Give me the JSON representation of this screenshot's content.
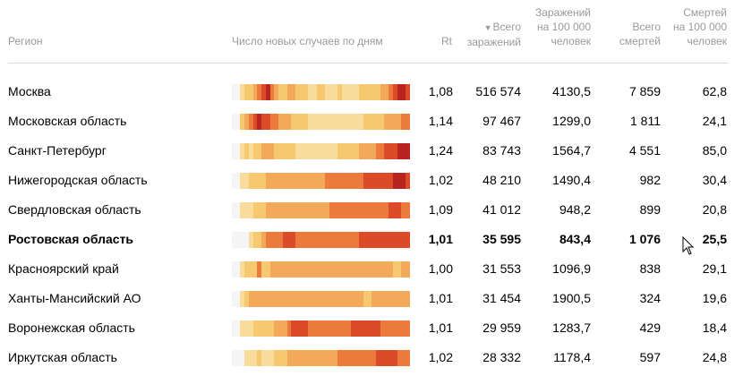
{
  "header": {
    "region": "Регион",
    "daily_cases": "Число новых случаев по дням",
    "rt": "Rt",
    "total_cases_line1": "Всего",
    "total_cases_line2": "заражений",
    "sort_indicator": "▼",
    "per100k_line1": "Заражений",
    "per100k_line2": "на 100 000",
    "per100k_line3": "человек",
    "total_deaths_line1": "Всего",
    "total_deaths_line2": "смертей",
    "deaths_per100k_line1": "Смертей",
    "deaths_per100k_line2": "на 100 000",
    "deaths_per100k_line3": "человек"
  },
  "heatmap_palette": [
    "#f5f5f5",
    "#f9dc9c",
    "#f6c86f",
    "#f3a95a",
    "#ec7a3c",
    "#dc4a28",
    "#b8241f"
  ],
  "rows": [
    {
      "region": "Москва",
      "rt": "1,08",
      "total_cases": "516 574",
      "cases_per_100k": "4130,5",
      "total_deaths": "7 859",
      "deaths_per_100k": "62,8",
      "bold": false,
      "heat": [
        0,
        0,
        1,
        2,
        2,
        3,
        4,
        5,
        6,
        4,
        3,
        2,
        2,
        3,
        3,
        2,
        2,
        2,
        1,
        1,
        2,
        2,
        1,
        1,
        1,
        2,
        1,
        1,
        1,
        1,
        2,
        2,
        2,
        2,
        2,
        3,
        3,
        4,
        5,
        6,
        6,
        5
      ]
    },
    {
      "region": "Московская область",
      "rt": "1,14",
      "total_cases": "97 467",
      "cases_per_100k": "1299,0",
      "total_deaths": "1 811",
      "deaths_per_100k": "24,1",
      "bold": false,
      "heat": [
        0,
        0,
        2,
        3,
        4,
        5,
        6,
        5,
        5,
        4,
        4,
        3,
        3,
        3,
        2,
        2,
        2,
        2,
        1,
        1,
        1,
        1,
        1,
        1,
        1,
        1,
        1,
        1,
        1,
        1,
        1,
        2,
        2,
        2,
        2,
        2,
        3,
        3,
        3,
        3,
        4,
        4
      ]
    },
    {
      "region": "Санкт-Петербург",
      "rt": "1,24",
      "total_cases": "83 743",
      "cases_per_100k": "1564,7",
      "total_deaths": "4 551",
      "deaths_per_100k": "85,0",
      "bold": false,
      "heat": [
        0,
        0,
        1,
        2,
        1,
        2,
        2,
        3,
        3,
        3,
        2,
        2,
        2,
        2,
        2,
        1,
        1,
        1,
        1,
        1,
        1,
        1,
        1,
        1,
        1,
        2,
        2,
        2,
        2,
        2,
        3,
        3,
        3,
        3,
        4,
        4,
        5,
        5,
        5,
        6,
        6,
        6
      ]
    },
    {
      "region": "Нижегородская область",
      "rt": "1,02",
      "total_cases": "48 210",
      "cases_per_100k": "1490,4",
      "total_deaths": "982",
      "deaths_per_100k": "30,4",
      "bold": false,
      "heat": [
        0,
        0,
        1,
        1,
        2,
        2,
        2,
        2,
        3,
        3,
        3,
        3,
        3,
        3,
        3,
        3,
        3,
        3,
        3,
        3,
        3,
        3,
        4,
        4,
        4,
        4,
        4,
        4,
        4,
        4,
        4,
        5,
        5,
        5,
        5,
        5,
        5,
        5,
        6,
        6,
        6,
        5
      ]
    },
    {
      "region": "Свердловская область",
      "rt": "1,09",
      "total_cases": "41 012",
      "cases_per_100k": "948,2",
      "total_deaths": "899",
      "deaths_per_100k": "20,8",
      "bold": false,
      "heat": [
        0,
        0,
        1,
        1,
        1,
        2,
        2,
        2,
        3,
        3,
        3,
        3,
        3,
        3,
        3,
        3,
        3,
        3,
        3,
        3,
        3,
        3,
        3,
        4,
        4,
        4,
        4,
        4,
        4,
        4,
        4,
        4,
        4,
        4,
        4,
        4,
        4,
        5,
        5,
        5,
        4,
        4
      ]
    },
    {
      "region": "Ростовская область",
      "rt": "1,01",
      "total_cases": "35 595",
      "cases_per_100k": "843,4",
      "total_deaths": "1 076",
      "deaths_per_100k": "25,5",
      "bold": true,
      "heat": [
        0,
        0,
        0,
        0,
        1,
        2,
        2,
        3,
        4,
        4,
        4,
        4,
        5,
        5,
        5,
        4,
        4,
        4,
        4,
        4,
        4,
        4,
        4,
        4,
        4,
        4,
        4,
        4,
        4,
        4,
        5,
        5,
        5,
        5,
        5,
        5,
        5,
        5,
        5,
        5,
        5,
        5
      ]
    },
    {
      "region": "Красноярский край",
      "rt": "1,00",
      "total_cases": "31 553",
      "cases_per_100k": "1096,9",
      "total_deaths": "838",
      "deaths_per_100k": "29,1",
      "bold": false,
      "heat": [
        0,
        0,
        1,
        2,
        2,
        2,
        4,
        2,
        2,
        3,
        3,
        3,
        3,
        3,
        3,
        3,
        3,
        3,
        3,
        3,
        3,
        3,
        3,
        3,
        3,
        3,
        3,
        3,
        3,
        3,
        3,
        3,
        3,
        3,
        3,
        3,
        3,
        3,
        2,
        2,
        3,
        3
      ]
    },
    {
      "region": "Ханты-Мансийский АО",
      "rt": "1,01",
      "total_cases": "31 454",
      "cases_per_100k": "1900,5",
      "total_deaths": "324",
      "deaths_per_100k": "19,6",
      "bold": false,
      "heat": [
        0,
        0,
        1,
        2,
        3,
        3,
        3,
        3,
        3,
        3,
        3,
        3,
        3,
        3,
        3,
        3,
        3,
        3,
        3,
        3,
        3,
        3,
        3,
        3,
        3,
        3,
        3,
        3,
        3,
        3,
        3,
        2,
        2,
        3,
        3,
        3,
        3,
        3,
        3,
        3,
        3,
        3
      ]
    },
    {
      "region": "Воронежская область",
      "rt": "1,01",
      "total_cases": "29 959",
      "cases_per_100k": "1283,7",
      "total_deaths": "429",
      "deaths_per_100k": "18,4",
      "bold": false,
      "heat": [
        0,
        0,
        1,
        1,
        1,
        2,
        2,
        2,
        2,
        2,
        3,
        3,
        3,
        4,
        5,
        5,
        5,
        5,
        4,
        4,
        4,
        4,
        4,
        4,
        4,
        4,
        4,
        4,
        5,
        5,
        5,
        5,
        5,
        5,
        5,
        4,
        4,
        4,
        4,
        4,
        4,
        4
      ]
    },
    {
      "region": "Иркутская область",
      "rt": "1,02",
      "total_cases": "28 332",
      "cases_per_100k": "1178,4",
      "total_deaths": "597",
      "deaths_per_100k": "24,8",
      "bold": false,
      "heat": [
        0,
        0,
        0,
        1,
        1,
        1,
        2,
        1,
        1,
        1,
        2,
        2,
        2,
        3,
        3,
        3,
        3,
        3,
        3,
        3,
        3,
        3,
        3,
        3,
        3,
        4,
        4,
        4,
        4,
        4,
        4,
        4,
        4,
        4,
        5,
        5,
        5,
        5,
        5,
        4,
        4,
        4
      ]
    }
  ]
}
